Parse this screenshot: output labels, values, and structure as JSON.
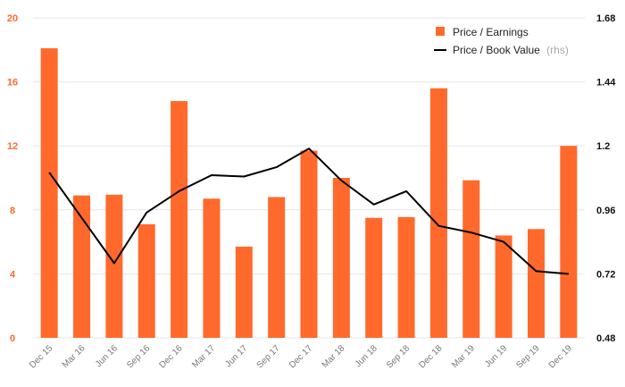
{
  "chart_data": {
    "type": "bar",
    "categories": [
      "Dec 15",
      "Mar 16",
      "Jun 16",
      "Sep 16",
      "Dec 16",
      "Mar 17",
      "Jun 17",
      "Sep 17",
      "Dec 17",
      "Mar 18",
      "Jun 18",
      "Sep 18",
      "Dec 18",
      "Mar 19",
      "Jun 19",
      "Sep 19",
      "Dec 19"
    ],
    "series": [
      {
        "name": "Price / Earnings",
        "type": "bar",
        "axis": "left",
        "color": "#ff6a2c",
        "values": [
          18.1,
          8.9,
          8.95,
          7.1,
          14.8,
          8.7,
          5.7,
          8.8,
          11.7,
          10.0,
          7.5,
          7.55,
          15.6,
          9.85,
          6.4,
          6.8,
          12.0
        ]
      },
      {
        "name": "Price / Book Value",
        "type": "line",
        "axis": "right",
        "color": "#000000",
        "values": [
          1.1,
          0.93,
          0.76,
          0.95,
          1.03,
          1.09,
          1.085,
          1.12,
          1.19,
          1.07,
          0.98,
          1.03,
          0.9,
          0.875,
          0.84,
          0.73,
          0.72
        ]
      }
    ],
    "y_left": {
      "ylim": [
        0,
        20
      ],
      "ticks": [
        "0",
        "4",
        "8",
        "12",
        "16",
        "20"
      ]
    },
    "y_right": {
      "ylim": [
        0.48,
        1.68
      ],
      "ticks": [
        "0.48",
        "0.72",
        "0.96",
        "1.2",
        "1.44",
        "1.68"
      ]
    },
    "legend": {
      "placement": "top-right",
      "items": [
        {
          "label": "Price / Earnings",
          "note": ""
        },
        {
          "label": "Price / Book Value",
          "note": "(rhs)"
        }
      ]
    },
    "grid": true
  }
}
